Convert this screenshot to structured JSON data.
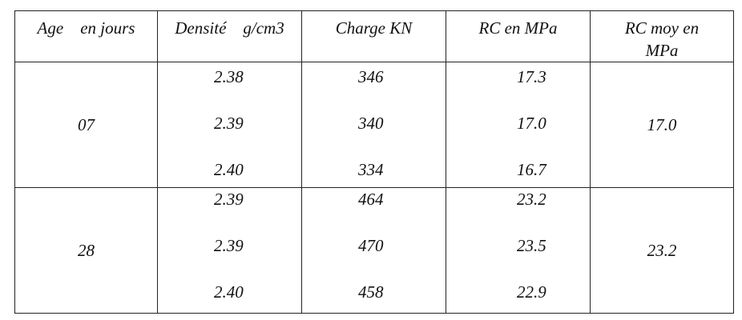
{
  "headers": [
    "Age    en jours",
    "Densité    g/cm3",
    "Charge KN",
    "RC en MPa",
    "RC moy en MPa"
  ],
  "groups": [
    {
      "age": "07",
      "densite": [
        "2.38",
        "2.39",
        "2.40"
      ],
      "charge": [
        "346",
        "340",
        "334"
      ],
      "rc": [
        "17.3",
        "17.0",
        "16.7"
      ],
      "rc_moy": "17.0"
    },
    {
      "age": "28",
      "densite": [
        "2.39",
        "2.39",
        "2.40"
      ],
      "charge": [
        "464",
        "470",
        "458"
      ],
      "rc": [
        "23.2",
        "23.5",
        "22.9"
      ],
      "rc_moy": "23.2"
    }
  ]
}
